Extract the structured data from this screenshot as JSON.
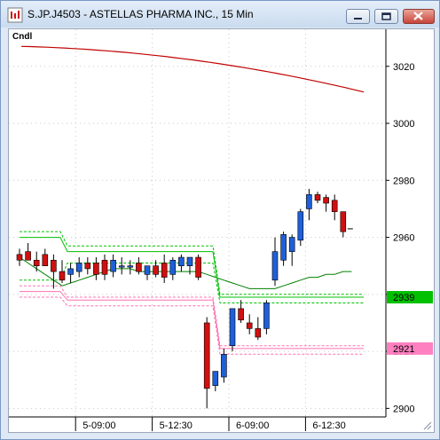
{
  "window": {
    "title": "S.JP.J4503 - ASTELLAS PHARMA INC., 15 Min",
    "minimize_icon": "minimize-icon",
    "maximize_icon": "maximize-icon",
    "close_icon": "close-icon"
  },
  "chart": {
    "study_label": "Cndl",
    "y_axis": {
      "min": 2897,
      "max": 3033,
      "ticks": [
        "3020",
        "3000",
        "2980",
        "2960",
        "2940",
        "2920",
        "2900"
      ]
    },
    "x_axis": {
      "labels": [
        "5-09:00",
        "5-12:30",
        "6-09:00",
        "6-12:30"
      ]
    },
    "markers": [
      {
        "label": "2939",
        "value": 2939,
        "color": "#00c000"
      },
      {
        "label": "2921",
        "value": 2921,
        "color": "#ff80c0"
      }
    ],
    "colors": {
      "up_candle": "#1f5fd8",
      "down_candle": "#d01010",
      "ma_long": "#c00000",
      "ma_short": "#008000",
      "band_green": "#00c000",
      "band_pink": "#ff70b0",
      "grid": "#c8c8c8"
    }
  },
  "chart_data": {
    "type": "candlestick",
    "title": "S.JP.J4503 - ASTELLAS PHARMA INC., 15 Min",
    "ylim": [
      2897,
      3033
    ],
    "candles": [
      {
        "o": 2954,
        "h": 2956,
        "l": 2950,
        "c": 2952
      },
      {
        "o": 2955,
        "h": 2958,
        "l": 2952,
        "c": 2952
      },
      {
        "o": 2952,
        "h": 2955,
        "l": 2948,
        "c": 2950
      },
      {
        "o": 2954,
        "h": 2956,
        "l": 2950,
        "c": 2950
      },
      {
        "o": 2952,
        "h": 2954,
        "l": 2942,
        "c": 2948
      },
      {
        "o": 2948,
        "h": 2952,
        "l": 2944,
        "c": 2945
      },
      {
        "o": 2947,
        "h": 2951,
        "l": 2944,
        "c": 2949
      },
      {
        "o": 2948,
        "h": 2953,
        "l": 2946,
        "c": 2951
      },
      {
        "o": 2951,
        "h": 2953,
        "l": 2947,
        "c": 2949
      },
      {
        "o": 2951,
        "h": 2953,
        "l": 2945,
        "c": 2947
      },
      {
        "o": 2952,
        "h": 2954,
        "l": 2945,
        "c": 2947
      },
      {
        "o": 2948,
        "h": 2954,
        "l": 2946,
        "c": 2952
      },
      {
        "o": 2950,
        "h": 2953,
        "l": 2947,
        "c": 2950
      },
      {
        "o": 2950,
        "h": 2952,
        "l": 2947,
        "c": 2950
      },
      {
        "o": 2951,
        "h": 2953,
        "l": 2947,
        "c": 2948
      },
      {
        "o": 2947,
        "h": 2950,
        "l": 2945,
        "c": 2950
      },
      {
        "o": 2950,
        "h": 2952,
        "l": 2946,
        "c": 2947
      },
      {
        "o": 2951,
        "h": 2954,
        "l": 2944,
        "c": 2946
      },
      {
        "o": 2947,
        "h": 2953,
        "l": 2945,
        "c": 2952
      },
      {
        "o": 2950,
        "h": 2954,
        "l": 2948,
        "c": 2953
      },
      {
        "o": 2950,
        "h": 2953,
        "l": 2947,
        "c": 2953
      },
      {
        "o": 2953,
        "h": 2954,
        "l": 2945,
        "c": 2946
      },
      {
        "o": 2930,
        "h": 2932,
        "l": 2900,
        "c": 2907
      },
      {
        "o": 2908,
        "h": 2913,
        "l": 2906,
        "c": 2913
      },
      {
        "o": 2911,
        "h": 2921,
        "l": 2909,
        "c": 2919
      },
      {
        "o": 2922,
        "h": 2935,
        "l": 2920,
        "c": 2935
      },
      {
        "o": 2935,
        "h": 2938,
        "l": 2930,
        "c": 2931
      },
      {
        "o": 2930,
        "h": 2933,
        "l": 2926,
        "c": 2928
      },
      {
        "o": 2928,
        "h": 2932,
        "l": 2924,
        "c": 2925
      },
      {
        "o": 2928,
        "h": 2938,
        "l": 2926,
        "c": 2937
      },
      {
        "o": 2945,
        "h": 2960,
        "l": 2943,
        "c": 2955
      },
      {
        "o": 2952,
        "h": 2962,
        "l": 2950,
        "c": 2961
      },
      {
        "o": 2955,
        "h": 2961,
        "l": 2950,
        "c": 2960
      },
      {
        "o": 2959,
        "h": 2970,
        "l": 2957,
        "c": 2969
      },
      {
        "o": 2970,
        "h": 2977,
        "l": 2966,
        "c": 2975
      },
      {
        "o": 2975,
        "h": 2976,
        "l": 2972,
        "c": 2973
      },
      {
        "o": 2974,
        "h": 2975,
        "l": 2969,
        "c": 2972
      },
      {
        "o": 2973,
        "h": 2975,
        "l": 2966,
        "c": 2969
      },
      {
        "o": 2969,
        "h": 2969,
        "l": 2960,
        "c": 2962
      }
    ]
  }
}
